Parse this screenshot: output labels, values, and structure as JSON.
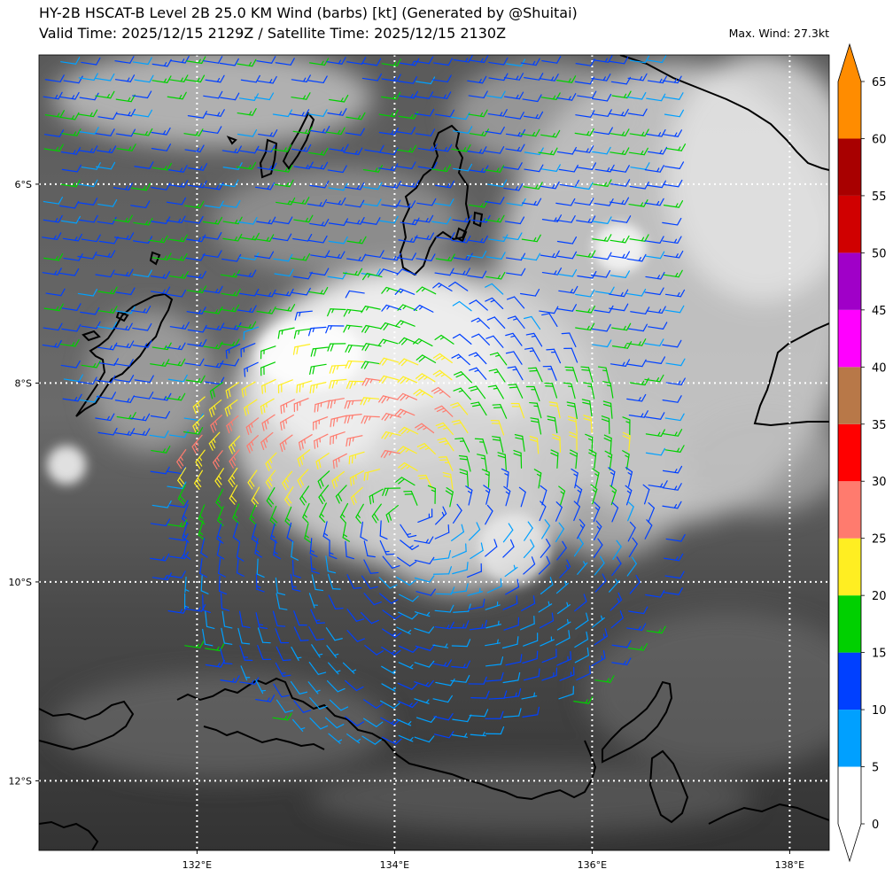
{
  "header": {
    "title_line1": "HY-2B HSCAT-B Level 2B 25.0 KM Wind (barbs) [kt] (Generated by @Shuitai)",
    "title_line2": "Valid Time: 2025/12/15 2129Z / Satellite Time: 2025/12/15 2130Z",
    "max_wind": "Max. Wind: 27.3kt"
  },
  "map": {
    "lon_range": [
      130.4,
      138.4
    ],
    "lat_range": [
      -12.7,
      -4.7
    ],
    "lon_ticks": [
      {
        "value": 132,
        "label": "132°E"
      },
      {
        "value": 134,
        "label": "134°E"
      },
      {
        "value": 136,
        "label": "136°E"
      },
      {
        "value": 138,
        "label": "138°E"
      }
    ],
    "lat_ticks": [
      {
        "value": -6,
        "label": "6°S"
      },
      {
        "value": -8,
        "label": "8°S"
      },
      {
        "value": -10,
        "label": "10°S"
      },
      {
        "value": -12,
        "label": "12°S"
      }
    ],
    "grid": true,
    "circulation_center": {
      "lon": 134.15,
      "lat": -9.3
    }
  },
  "colorbar": {
    "unit": "kt",
    "levels": [
      0,
      5,
      10,
      15,
      20,
      25,
      30,
      35,
      40,
      45,
      50,
      55,
      60,
      65
    ],
    "labels": [
      "0",
      "5",
      "10",
      "15",
      "20",
      "25",
      "30",
      "35",
      "40",
      "45",
      "50",
      "55",
      "60",
      "65"
    ],
    "colors": [
      "#ffffff",
      "#00a0ff",
      "#0040ff",
      "#00d000",
      "#ffee22",
      "#ff7b6e",
      "#ff0000",
      "#b87848",
      "#ff00ff",
      "#a000c8",
      "#d00000",
      "#a80000",
      "#ff8c00"
    ]
  }
}
